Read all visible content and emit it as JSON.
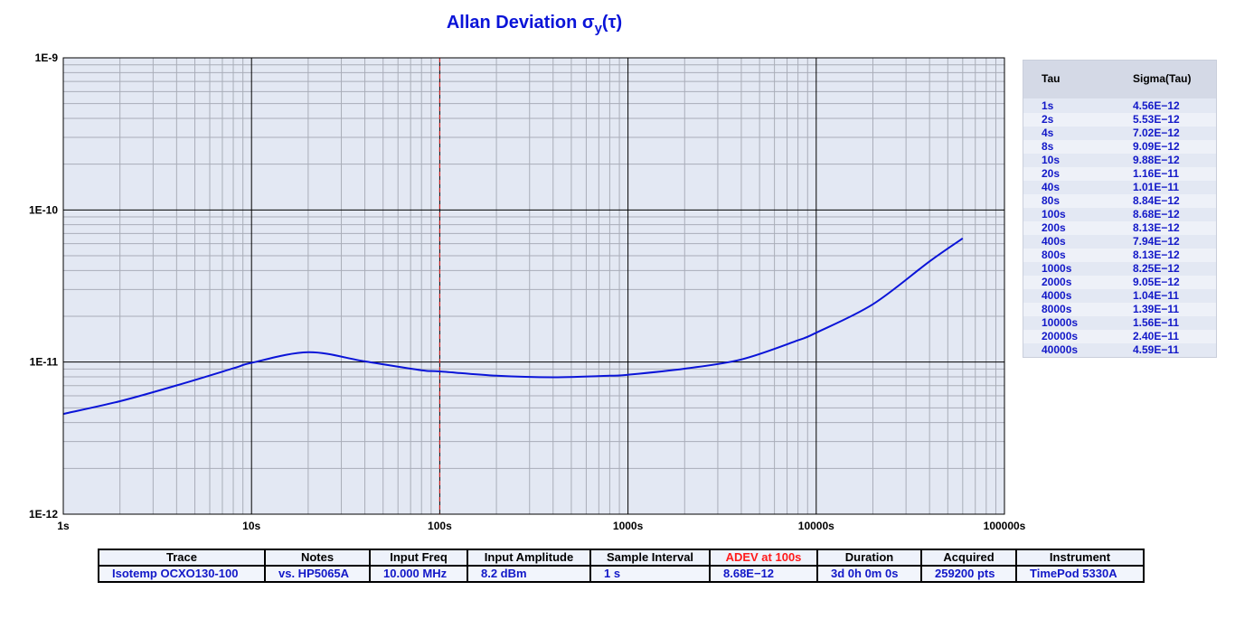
{
  "title": {
    "main": "Allan Deviation σ",
    "sub": "y",
    "suffix": "(τ)"
  },
  "chart_data": {
    "type": "line",
    "title": "Allan Deviation σy(τ)",
    "xscale": "log",
    "yscale": "log",
    "xlim": [
      1,
      100000
    ],
    "ylim": [
      1e-12,
      1e-09
    ],
    "x_tick_labels": [
      "1s",
      "10s",
      "100s",
      "1000s",
      "10000s",
      "100000s"
    ],
    "y_tick_labels": [
      "1E-9",
      "1E-10",
      "1E-11",
      "1E-12"
    ],
    "grid": true,
    "marker_x": 100,
    "series": [
      {
        "values_x": [
          1,
          2,
          4,
          8,
          10,
          20,
          40,
          80,
          100,
          200,
          400,
          800,
          1000,
          2000,
          4000,
          8000,
          10000,
          20000,
          40000,
          60000
        ],
        "values_y": [
          4.56e-12,
          5.53e-12,
          7.02e-12,
          9.09e-12,
          9.88e-12,
          1.16e-11,
          1.01e-11,
          8.84e-12,
          8.68e-12,
          8.13e-12,
          7.94e-12,
          8.13e-12,
          8.25e-12,
          9.05e-12,
          1.04e-11,
          1.39e-11,
          1.56e-11,
          2.4e-11,
          4.59e-11,
          6.5e-11
        ]
      }
    ]
  },
  "sigma_table": {
    "headers": [
      "Tau",
      "Sigma(Tau)"
    ],
    "rows": [
      [
        "1s",
        "4.56E−12"
      ],
      [
        "2s",
        "5.53E−12"
      ],
      [
        "4s",
        "7.02E−12"
      ],
      [
        "8s",
        "9.09E−12"
      ],
      [
        "10s",
        "9.88E−12"
      ],
      [
        "20s",
        "1.16E−11"
      ],
      [
        "40s",
        "1.01E−11"
      ],
      [
        "80s",
        "8.84E−12"
      ],
      [
        "100s",
        "8.68E−12"
      ],
      [
        "200s",
        "8.13E−12"
      ],
      [
        "400s",
        "7.94E−12"
      ],
      [
        "800s",
        "8.13E−12"
      ],
      [
        "1000s",
        "8.25E−12"
      ],
      [
        "2000s",
        "9.05E−12"
      ],
      [
        "4000s",
        "1.04E−11"
      ],
      [
        "8000s",
        "1.39E−11"
      ],
      [
        "10000s",
        "1.56E−11"
      ],
      [
        "20000s",
        "2.40E−11"
      ],
      [
        "40000s",
        "4.59E−11"
      ]
    ]
  },
  "info_table": {
    "headers": [
      "Trace",
      "Notes",
      "Input Freq",
      "Input Amplitude",
      "Sample Interval",
      "ADEV at 100s",
      "Duration",
      "Acquired",
      "Instrument"
    ],
    "values": [
      "Isotemp OCXO130-100",
      "vs. HP5065A",
      "10.000 MHz",
      "8.2 dBm",
      "1 s",
      "8.68E−12",
      "3d 0h 0m 0s",
      "259200 pts",
      "TimePod 5330A"
    ]
  },
  "colors": {
    "trace": "#0a14d8",
    "plot_bg": "#e3e8f3",
    "marker": "#e0201e",
    "table_text": "#1218c8"
  }
}
